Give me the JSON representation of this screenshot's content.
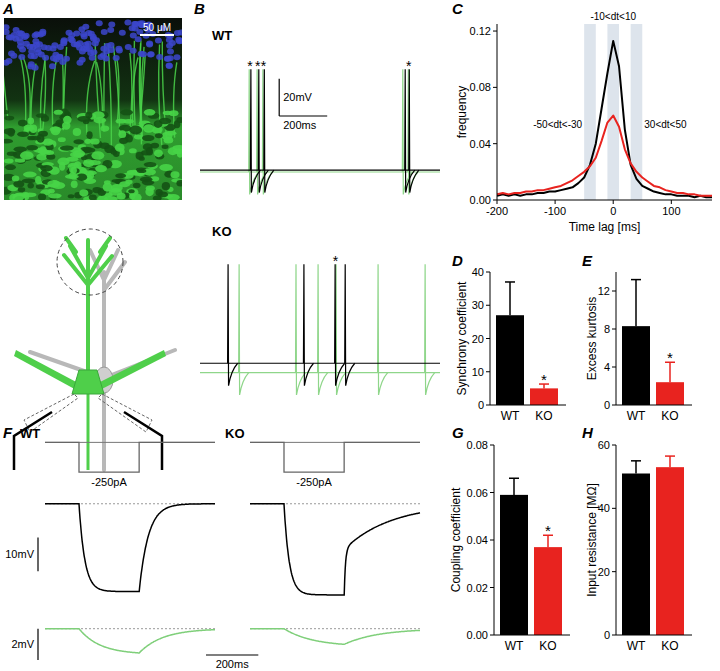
{
  "figure": {
    "panel_labels": [
      "A",
      "B",
      "C",
      "D",
      "E",
      "F",
      "G",
      "H"
    ],
    "A": {
      "scale_bar": "50 μM"
    },
    "B": {
      "scale_bars": {
        "voltage": {
          "value": 20,
          "label": "20mV"
        },
        "time": {
          "value": 200,
          "label": "200ms"
        }
      },
      "panels": [
        {
          "label": "WT",
          "xlim": [
            0,
            1000
          ],
          "ylim": [
            -75,
            0
          ],
          "spike_peak_mV": -5,
          "traces": [
            {
              "color": "#8fd68a",
              "baseline_mV": -60,
              "spikes": [
                205,
                238,
                262,
                845,
                868
              ]
            },
            {
              "color": "#000000",
              "baseline_mV": -59,
              "spikes": [
                212,
                245,
                268,
                855,
                872
              ]
            }
          ],
          "asterisks": {
            "text": "*",
            "times": [
              208,
              241,
              265,
              870
            ]
          }
        },
        {
          "label": "KO",
          "xlim": [
            0,
            1000
          ],
          "ylim": [
            -75,
            0
          ],
          "spike_peak_mV": -5,
          "traces": [
            {
              "color": "#8fd68a",
              "baseline_mV": -63,
              "spikes": [
                163,
                400,
                492,
                567,
                742,
                938
              ]
            },
            {
              "color": "#000000",
              "baseline_mV": -58,
              "spikes": [
                117,
                433,
                563,
                605
              ]
            }
          ],
          "asterisks": {
            "text": "*",
            "times": [
              565
            ]
          }
        }
      ]
    },
    "F": {
      "scale_bars": {
        "voltage_cell1": {
          "value": 10,
          "label": "10mV"
        },
        "voltage_cell2": {
          "value": 2,
          "label": "2mV"
        },
        "time": {
          "value": 200,
          "label": "200ms"
        }
      },
      "panels": [
        {
          "label": "WT",
          "xlim": [
            0,
            650
          ],
          "step_ms": [
            130,
            360
          ],
          "current": {
            "value": -250,
            "label": "-250pA"
          },
          "current_ylim": [
            -300,
            20
          ],
          "cell1_mV": -26,
          "cell1_ylim": [
            -30,
            2
          ],
          "cell2_mV": -1.55,
          "cell2_ylim": [
            -2,
            0.3
          ]
        },
        {
          "label": "KO",
          "xlim": [
            0,
            650
          ],
          "step_ms": [
            130,
            360
          ],
          "current": {
            "value": -250,
            "label": "-250pA"
          },
          "current_ylim": [
            -300,
            20
          ],
          "cell1_mV": -27,
          "cell1_ylim": [
            -30,
            2
          ],
          "cell2_mV": -1.0,
          "cell2_ylim": [
            -2,
            0.3
          ]
        }
      ]
    }
  },
  "chart_data": [
    {
      "type": "line",
      "xlabel": "Time lag [ms]",
      "ylabel": "frequency",
      "x": [
        -200,
        -190,
        -180,
        -170,
        -160,
        -150,
        -140,
        -130,
        -120,
        -110,
        -100,
        -90,
        -80,
        -70,
        -60,
        -50,
        -40,
        -30,
        -20,
        -10,
        0,
        10,
        20,
        30,
        40,
        50,
        60,
        70,
        80,
        90,
        100,
        110,
        120,
        130,
        140,
        150,
        160,
        170
      ],
      "series": [
        {
          "color": "#000000",
          "values": [
            0.003,
            0.004,
            0.003,
            0.004,
            0.003,
            0.004,
            0.004,
            0.005,
            0.005,
            0.006,
            0.006,
            0.007,
            0.008,
            0.009,
            0.012,
            0.016,
            0.025,
            0.04,
            0.065,
            0.09,
            0.113,
            0.095,
            0.05,
            0.025,
            0.015,
            0.01,
            0.008,
            0.006,
            0.005,
            0.004,
            0.004,
            0.003,
            0.003,
            0.003,
            0.002,
            0.003,
            0.002,
            0.002
          ]
        },
        {
          "color": "#e8231f",
          "values": [
            0.004,
            0.005,
            0.004,
            0.005,
            0.005,
            0.006,
            0.006,
            0.007,
            0.007,
            0.008,
            0.009,
            0.01,
            0.012,
            0.014,
            0.017,
            0.02,
            0.024,
            0.03,
            0.042,
            0.055,
            0.06,
            0.052,
            0.036,
            0.026,
            0.02,
            0.016,
            0.013,
            0.01,
            0.009,
            0.007,
            0.006,
            0.005,
            0.005,
            0.004,
            0.004,
            0.003,
            0.003,
            0.003
          ]
        }
      ],
      "xlim": [
        -200,
        170
      ],
      "ylim": [
        0,
        0.125
      ],
      "xticks": [
        -200,
        -100,
        0,
        100
      ],
      "yticks": [
        {
          "value": 0,
          "label": "0.00"
        },
        {
          "value": 0.04,
          "label": "0.04"
        },
        {
          "value": 0.08,
          "label": "0.08"
        },
        {
          "value": 0.12,
          "label": "0.12"
        }
      ],
      "bands": [
        {
          "range": [
            -50,
            -30
          ],
          "label": "-50<dt<-30"
        },
        {
          "range": [
            -10,
            10
          ],
          "label": "-10<dt<10"
        },
        {
          "range": [
            30,
            50
          ],
          "label": "30<dt<50"
        }
      ]
    },
    {
      "type": "bar",
      "ylabel": "Synchrony coefficient",
      "categories": [
        "WT",
        "KO"
      ],
      "values": [
        27,
        5
      ],
      "errors": [
        10,
        1.3
      ],
      "colors": [
        "#000000",
        "#e8231f"
      ],
      "ylim": [
        0,
        40
      ],
      "yticks": [
        0,
        10,
        20,
        30,
        40
      ],
      "annotations": [
        {
          "text": "*",
          "category": "KO"
        }
      ]
    },
    {
      "type": "bar",
      "ylabel": "Excess kurtosis",
      "categories": [
        "WT",
        "KO"
      ],
      "values": [
        8.3,
        2.4
      ],
      "errors": [
        4.9,
        2.1
      ],
      "colors": [
        "#000000",
        "#e8231f"
      ],
      "ylim": [
        0,
        14
      ],
      "yticks": [
        0,
        4,
        8,
        12
      ],
      "annotations": [
        {
          "text": "*",
          "category": "KO"
        }
      ]
    },
    {
      "type": "bar",
      "ylabel": "Coupling coefficient",
      "categories": [
        "WT",
        "KO"
      ],
      "values": [
        0.059,
        0.037
      ],
      "errors": [
        0.007,
        0.005
      ],
      "colors": [
        "#000000",
        "#e8231f"
      ],
      "ylim": [
        0,
        0.08
      ],
      "yticks": [
        {
          "value": 0,
          "label": "0.00"
        },
        {
          "value": 0.02,
          "label": "0.02"
        },
        {
          "value": 0.04,
          "label": "0.04"
        },
        {
          "value": 0.06,
          "label": "0.06"
        },
        {
          "value": 0.08,
          "label": "0.08"
        }
      ],
      "annotations": [
        {
          "text": "*",
          "category": "KO"
        }
      ]
    },
    {
      "type": "bar",
      "ylabel": "Input resistance [MΩ]",
      "categories": [
        "WT",
        "KO"
      ],
      "values": [
        51,
        53
      ],
      "errors": [
        4,
        3.5
      ],
      "colors": [
        "#000000",
        "#e8231f"
      ],
      "ylim": [
        0,
        60
      ],
      "yticks": [
        0,
        20,
        40,
        60
      ]
    }
  ]
}
